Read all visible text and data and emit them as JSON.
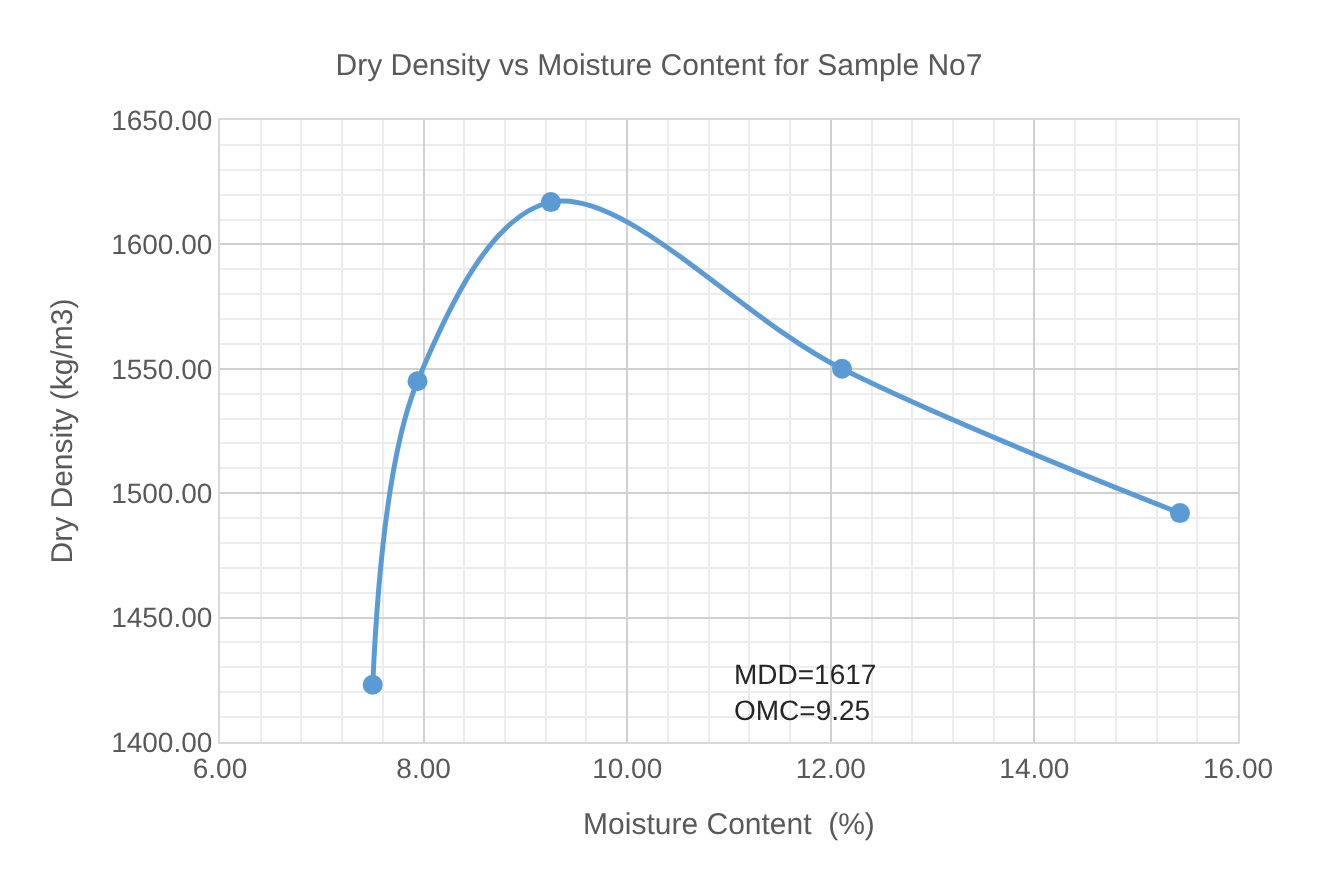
{
  "chart_data": {
    "type": "line",
    "title": "Dry Density vs Moisture Content for Sample No7",
    "xlabel": "Moisture Content  (%)",
    "ylabel": "Dry Density (kg/m3)",
    "x": [
      7.5,
      7.94,
      9.25,
      12.11,
      15.43
    ],
    "series": [
      {
        "color": "#5b9bd5",
        "values": [
          1423,
          1545,
          1617,
          1550,
          1492
        ]
      }
    ],
    "xlim": [
      6,
      16
    ],
    "xticks": [
      {
        "value": 6,
        "label": "6.00"
      },
      {
        "value": 8,
        "label": "8.00"
      },
      {
        "value": 10,
        "label": "10.00"
      },
      {
        "value": 12,
        "label": "12.00"
      },
      {
        "value": 14,
        "label": "14.00"
      },
      {
        "value": 16,
        "label": "16.00"
      }
    ],
    "ylim": [
      1400,
      1650
    ],
    "yticks": [
      {
        "value": 1400,
        "label": "1400.00"
      },
      {
        "value": 1450,
        "label": "1450.00"
      },
      {
        "value": 1500,
        "label": "1500.00"
      },
      {
        "value": 1550,
        "label": "1550.00"
      },
      {
        "value": 1600,
        "label": "1600.00"
      },
      {
        "value": 1650,
        "label": "1650.00"
      }
    ],
    "grid": true,
    "marker": "circle",
    "line_style": "solid",
    "annotations": [
      "MDD=1617\nOMC=9.25"
    ]
  }
}
